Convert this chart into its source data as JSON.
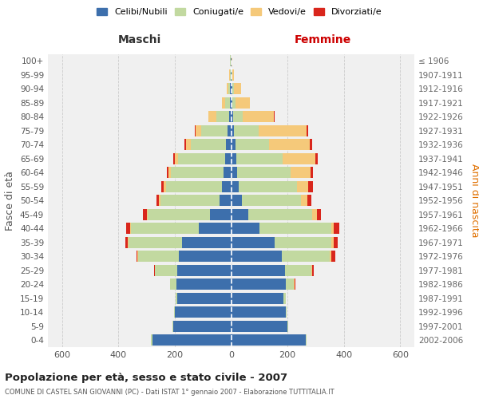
{
  "age_groups": [
    "100+",
    "95-99",
    "90-94",
    "85-89",
    "80-84",
    "75-79",
    "70-74",
    "65-69",
    "60-64",
    "55-59",
    "50-54",
    "45-49",
    "40-44",
    "35-39",
    "30-34",
    "25-29",
    "20-24",
    "15-19",
    "10-14",
    "5-9",
    "0-4"
  ],
  "birth_years": [
    "≤ 1906",
    "1907-1911",
    "1912-1916",
    "1917-1921",
    "1922-1926",
    "1927-1931",
    "1932-1936",
    "1937-1941",
    "1942-1946",
    "1947-1951",
    "1952-1956",
    "1957-1961",
    "1962-1966",
    "1967-1971",
    "1972-1976",
    "1977-1981",
    "1982-1986",
    "1987-1991",
    "1992-1996",
    "1997-2001",
    "2002-2006"
  ],
  "male": {
    "celibi": [
      2,
      2,
      3,
      5,
      8,
      12,
      18,
      22,
      28,
      32,
      42,
      75,
      115,
      175,
      185,
      190,
      195,
      190,
      200,
      205,
      280
    ],
    "coniugati": [
      1,
      2,
      7,
      15,
      45,
      95,
      125,
      165,
      185,
      200,
      210,
      220,
      240,
      190,
      145,
      80,
      22,
      8,
      2,
      2,
      4
    ],
    "vedovi": [
      1,
      2,
      5,
      12,
      28,
      18,
      18,
      12,
      8,
      6,
      4,
      3,
      3,
      2,
      2,
      1,
      0,
      0,
      0,
      0,
      0
    ],
    "divorziati": [
      0,
      0,
      0,
      0,
      1,
      5,
      5,
      5,
      7,
      10,
      10,
      15,
      14,
      8,
      5,
      2,
      1,
      0,
      0,
      0,
      0
    ]
  },
  "female": {
    "nubili": [
      1,
      1,
      3,
      4,
      7,
      10,
      15,
      18,
      22,
      28,
      38,
      60,
      100,
      155,
      180,
      190,
      195,
      185,
      195,
      200,
      265
    ],
    "coniugate": [
      1,
      2,
      6,
      12,
      35,
      88,
      120,
      165,
      188,
      205,
      210,
      228,
      255,
      200,
      170,
      95,
      28,
      8,
      2,
      2,
      4
    ],
    "vedove": [
      3,
      8,
      25,
      50,
      110,
      170,
      145,
      115,
      72,
      40,
      22,
      16,
      10,
      8,
      5,
      3,
      2,
      0,
      0,
      0,
      0
    ],
    "divorziate": [
      0,
      0,
      0,
      1,
      2,
      6,
      7,
      8,
      9,
      18,
      14,
      14,
      18,
      14,
      14,
      4,
      2,
      0,
      0,
      0,
      0
    ]
  },
  "colors": {
    "celibi": "#3d6fac",
    "coniugati": "#c2d9a0",
    "vedovi": "#f5c97a",
    "divorziati": "#d9261c"
  },
  "xlim": 650,
  "title": "Popolazione per età, sesso e stato civile - 2007",
  "subtitle": "COMUNE DI CASTEL SAN GIOVANNI (PC) - Dati ISTAT 1° gennaio 2007 - Elaborazione TUTTITALIA.IT",
  "ylabel_left": "Fasce di età",
  "ylabel_right": "Anni di nascita",
  "xlabel_maschi": "Maschi",
  "xlabel_femmine": "Femmine",
  "legend_labels": [
    "Celibi/Nubili",
    "Coniugati/e",
    "Vedovi/e",
    "Divorziati/e"
  ],
  "bg_color": "#f0f0f0"
}
